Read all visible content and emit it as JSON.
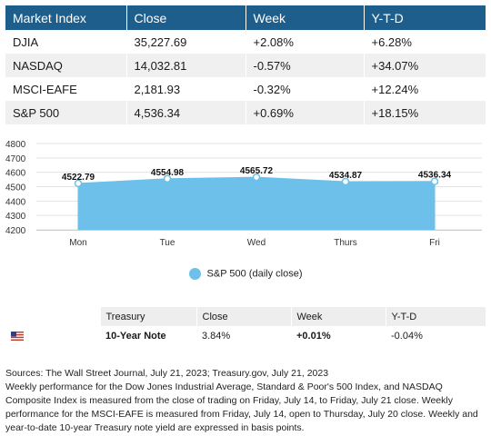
{
  "market_table": {
    "headers": [
      "Market Index",
      "Close",
      "Week",
      "Y-T-D"
    ],
    "rows": [
      [
        "DJIA",
        "35,227.69",
        "+2.08%",
        "+6.28%"
      ],
      [
        "NASDAQ",
        "14,032.81",
        "-0.57%",
        "+34.07%"
      ],
      [
        "MSCI-EAFE",
        "2,181.93",
        "-0.32%",
        "+12.24%"
      ],
      [
        "S&P 500",
        "4,536.34",
        "+0.69%",
        "+18.15%"
      ]
    ]
  },
  "chart_data": {
    "type": "area",
    "categories": [
      "Mon",
      "Tue",
      "Wed",
      "Thurs",
      "Fri"
    ],
    "series": [
      {
        "name": "S&P 500 (daily close)",
        "values": [
          4522.79,
          4554.98,
          4565.72,
          4534.87,
          4536.34
        ],
        "color": "#6cc0ea"
      }
    ],
    "data_labels": [
      "4522.79",
      "4554.98",
      "4565.72",
      "4534.87",
      "4536.34"
    ],
    "yticks": [
      4200,
      4300,
      4400,
      4500,
      4600,
      4700,
      4800
    ],
    "ylim": [
      4200,
      4800
    ],
    "grid": true,
    "legend_position": "bottom"
  },
  "legend": {
    "label": "S&P 500 (daily close)"
  },
  "treasury_table": {
    "headers": [
      "",
      "Treasury",
      "Close",
      "Week",
      "Y-T-D"
    ],
    "row": {
      "flag_icon": "us-flag-icon",
      "name": "10-Year Note",
      "close": "3.84%",
      "week": "+0.01%",
      "ytd": "-0.04%"
    }
  },
  "footnote": {
    "line1": "Sources: The Wall Street Journal, July 21, 2023; Treasury.gov, July 21, 2023",
    "line2": "Weekly performance for the Dow Jones Industrial Average, Standard & Poor's 500 Index, and NASDAQ Composite Index is measured from the close of trading on Friday, July 14, to Friday, July 21 close. Weekly performance for the MSCI-EAFE is measured from Friday, July 14, open to Thursday, July 20 close. Weekly and year-to-date 10-year Treasury note yield are expressed in basis points."
  },
  "colors": {
    "header_bg": "#1e5e8c",
    "row_alt_bg": "#f0f0f0",
    "area_fill": "#6cc0ea"
  }
}
